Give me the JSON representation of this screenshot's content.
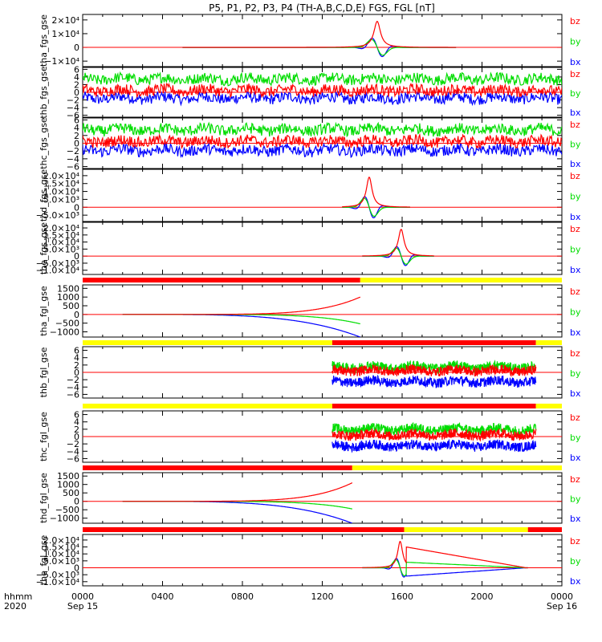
{
  "title": "P5, P1, P2, P3, P4 (TH-A,B,C,D,E) FGS, FGL [nT]",
  "colors": {
    "bx": "#0000ff",
    "by": "#00dd00",
    "bz": "#ff0000",
    "bar_red": "#ff0000",
    "bar_yellow": "#ffff00"
  },
  "chart_data": {
    "type": "line",
    "xaxis": {
      "start_label": "hhmm",
      "year_label": "2020",
      "ticks": [
        {
          "hour": 0,
          "label": "0000",
          "date": "Sep 15"
        },
        {
          "hour": 4,
          "label": "0400",
          "date": ""
        },
        {
          "hour": 8,
          "label": "0800",
          "date": ""
        },
        {
          "hour": 12,
          "label": "1200",
          "date": ""
        },
        {
          "hour": 16,
          "label": "1600",
          "date": ""
        },
        {
          "hour": 20,
          "label": "2000",
          "date": ""
        },
        {
          "hour": 24,
          "label": "0000",
          "date": "Sep 16"
        }
      ],
      "range_hours": [
        0,
        24
      ]
    },
    "panels": [
      {
        "id": "tha_fgs",
        "ylabel": "tha_fgs_gse",
        "ylim": [
          -14000,
          24000
        ],
        "yticks": [
          {
            "v": 20000,
            "label": "2×10⁴"
          },
          {
            "v": 10000,
            "label": "1×10⁴"
          },
          {
            "v": 0,
            "label": "0"
          },
          {
            "v": -10000,
            "label": "−1×10⁴"
          }
        ],
        "legend": [
          "bz",
          "by",
          "bx"
        ],
        "kind": "spike",
        "active": [
          5.0,
          18.7
        ],
        "center": 14.75,
        "width": 0.4,
        "peak": 19000,
        "noise": 0
      },
      {
        "id": "thb_fgs",
        "ylabel": "thb_fgs_gse",
        "ylim": [
          -6.5,
          6.5
        ],
        "yticks": [
          {
            "v": 6,
            "label": "6"
          },
          {
            "v": 4,
            "label": "4"
          },
          {
            "v": 2,
            "label": "2"
          },
          {
            "v": 0,
            "label": "0"
          },
          {
            "v": -2,
            "label": "−2"
          },
          {
            "v": -4,
            "label": "−4"
          },
          {
            "v": -6,
            "label": "−6"
          }
        ],
        "legend": [
          "bz",
          "by",
          "bx"
        ],
        "kind": "noisy",
        "active": [
          0,
          24
        ],
        "means": {
          "bz": 0.5,
          "by": 3.5,
          "bx": -1.5
        },
        "noise": 1.4
      },
      {
        "id": "thc_fgs",
        "ylabel": "thc_fgs_gse",
        "ylim": [
          -6.5,
          6.5
        ],
        "yticks": [
          {
            "v": 6,
            "label": "6"
          },
          {
            "v": 4,
            "label": "4"
          },
          {
            "v": 2,
            "label": "2"
          },
          {
            "v": 0,
            "label": "0"
          },
          {
            "v": -2,
            "label": "−2"
          },
          {
            "v": -4,
            "label": "−4"
          },
          {
            "v": -6,
            "label": "−6"
          }
        ],
        "legend": [
          "bz",
          "by",
          "bx"
        ],
        "kind": "noisy",
        "active": [
          0,
          24
        ],
        "means": {
          "bz": 0.5,
          "by": 3.5,
          "bx": -1.8
        },
        "noise": 1.4
      },
      {
        "id": "thd_fgs",
        "ylabel": "thd_fgs_gse",
        "ylim": [
          -9000,
          24000
        ],
        "yticks": [
          {
            "v": 20000,
            "label": "2.0×10⁴"
          },
          {
            "v": 15000,
            "label": "1.5×10⁴"
          },
          {
            "v": 10000,
            "label": "1.0×10⁴"
          },
          {
            "v": 5000,
            "label": "5.0×10³"
          },
          {
            "v": 0,
            "label": "0"
          },
          {
            "v": -5000,
            "label": "−5.0×10³"
          }
        ],
        "legend": [
          "bz",
          "by",
          "bx"
        ],
        "kind": "spike",
        "active": [
          13.0,
          16.4
        ],
        "center": 14.35,
        "width": 0.35,
        "peak": 19000,
        "noise": 0
      },
      {
        "id": "the_fgs",
        "ylabel": "the_fgs_gse",
        "ylim": [
          -13000,
          24000
        ],
        "yticks": [
          {
            "v": 20000,
            "label": "2.0×10⁴"
          },
          {
            "v": 15000,
            "label": "1.5×10⁴"
          },
          {
            "v": 10000,
            "label": "1.0×10⁴"
          },
          {
            "v": 5000,
            "label": "5.0×10³"
          },
          {
            "v": 0,
            "label": "0"
          },
          {
            "v": -5000,
            "label": "−5.0×10³"
          },
          {
            "v": -10000,
            "label": "−1.0×10⁴"
          }
        ],
        "legend": [
          "bz",
          "by",
          "bx"
        ],
        "kind": "spike",
        "active": [
          14.0,
          17.6
        ],
        "center": 15.95,
        "width": 0.35,
        "peak": 19000,
        "noise": 0
      },
      {
        "id": "thd_fgl",
        "ylabel": "tha_fgl_gse",
        "ylim": [
          -1300,
          1700
        ],
        "yticks": [
          {
            "v": 1500,
            "label": "1500"
          },
          {
            "v": 1000,
            "label": "1000"
          },
          {
            "v": 500,
            "label": "500"
          },
          {
            "v": 0,
            "label": "0"
          },
          {
            "v": -500,
            "label": "−500"
          },
          {
            "v": -1000,
            "label": "−1000"
          }
        ],
        "legend": [
          "bz",
          "by",
          "bx"
        ],
        "kind": "ramp",
        "active": [
          2.0,
          13.9
        ],
        "end": 13.9,
        "peak_bz": 1000,
        "peak_by": -600,
        "peak_bx": -1300,
        "bar": [
          {
            "from": 0,
            "to": 13.9,
            "color": "bar_red"
          },
          {
            "from": 13.9,
            "to": 24,
            "color": "bar_yellow"
          }
        ]
      },
      {
        "id": "thb_fgl",
        "ylabel": "thb_fgl_gse",
        "ylim": [
          -7,
          7
        ],
        "yticks": [
          {
            "v": 6,
            "label": "6"
          },
          {
            "v": 4,
            "label": "4"
          },
          {
            "v": 2,
            "label": "2"
          },
          {
            "v": 0,
            "label": "0"
          },
          {
            "v": -2,
            "label": "−2"
          },
          {
            "v": -4,
            "label": "−4"
          },
          {
            "v": -6,
            "label": "−6"
          }
        ],
        "legend": [
          "bz",
          "by",
          "bx"
        ],
        "kind": "noisy",
        "active": [
          12.5,
          22.7
        ],
        "means": {
          "bz": 0.5,
          "by": 1.5,
          "bx": -2.5
        },
        "noise": 1.3,
        "bar": [
          {
            "from": 0,
            "to": 12.5,
            "color": "bar_yellow"
          },
          {
            "from": 12.5,
            "to": 22.7,
            "color": "bar_red"
          },
          {
            "from": 22.7,
            "to": 24,
            "color": "bar_yellow"
          }
        ]
      },
      {
        "id": "thc_fgl",
        "ylabel": "thc_fgl_gse",
        "ylim": [
          -7,
          7
        ],
        "yticks": [
          {
            "v": 6,
            "label": "6"
          },
          {
            "v": 4,
            "label": "4"
          },
          {
            "v": 2,
            "label": "2"
          },
          {
            "v": 0,
            "label": "0"
          },
          {
            "v": -2,
            "label": "−2"
          },
          {
            "v": -4,
            "label": "−4"
          },
          {
            "v": -6,
            "label": "−6"
          }
        ],
        "legend": [
          "bz",
          "by",
          "bx"
        ],
        "kind": "noisy",
        "active": [
          12.5,
          22.7
        ],
        "means": {
          "bz": 0.5,
          "by": 2.0,
          "bx": -2.5
        },
        "noise": 1.3,
        "bar": [
          {
            "from": 0,
            "to": 12.5,
            "color": "bar_yellow"
          },
          {
            "from": 12.5,
            "to": 22.7,
            "color": "bar_red"
          },
          {
            "from": 22.7,
            "to": 24,
            "color": "bar_yellow"
          }
        ]
      },
      {
        "id": "thd_fgl2",
        "ylabel": "thd_fgl_gse",
        "ylim": [
          -1300,
          1700
        ],
        "yticks": [
          {
            "v": 1500,
            "label": "1500"
          },
          {
            "v": 1000,
            "label": "1000"
          },
          {
            "v": 500,
            "label": "500"
          },
          {
            "v": 0,
            "label": "0"
          },
          {
            "v": -500,
            "label": "−500"
          },
          {
            "v": -1000,
            "label": "−1000"
          }
        ],
        "legend": [
          "bz",
          "by",
          "bx"
        ],
        "kind": "ramp",
        "active": [
          2.0,
          13.5
        ],
        "end": 13.5,
        "peak_bz": 1100,
        "peak_by": -500,
        "peak_bx": -1300,
        "bar": [
          {
            "from": 0,
            "to": 13.5,
            "color": "bar_red"
          },
          {
            "from": 13.5,
            "to": 24,
            "color": "bar_yellow"
          }
        ]
      },
      {
        "id": "the_fgl",
        "ylabel": "the_fgl_gse",
        "ylim": [
          -13000,
          24000
        ],
        "yticks": [
          {
            "v": 20000,
            "label": "2.0×10⁴"
          },
          {
            "v": 15000,
            "label": "1.5×10⁴"
          },
          {
            "v": 10000,
            "label": "1.0×10⁴"
          },
          {
            "v": 5000,
            "label": "5.0×10³"
          },
          {
            "v": 0,
            "label": "0"
          },
          {
            "v": -5000,
            "label": "−5.0×10³"
          },
          {
            "v": -10000,
            "label": "−1.0×10⁴"
          }
        ],
        "legend": [
          "bz",
          "by",
          "bx"
        ],
        "kind": "spike_tail",
        "active": [
          14.0,
          22.3
        ],
        "center": 15.9,
        "width": 0.3,
        "peak": 19000,
        "tail_end": 22.2,
        "bar": [
          {
            "from": 0,
            "to": 16.1,
            "color": "bar_red"
          },
          {
            "from": 16.1,
            "to": 22.3,
            "color": "bar_yellow"
          },
          {
            "from": 22.3,
            "to": 24,
            "color": "bar_red"
          }
        ]
      }
    ]
  }
}
